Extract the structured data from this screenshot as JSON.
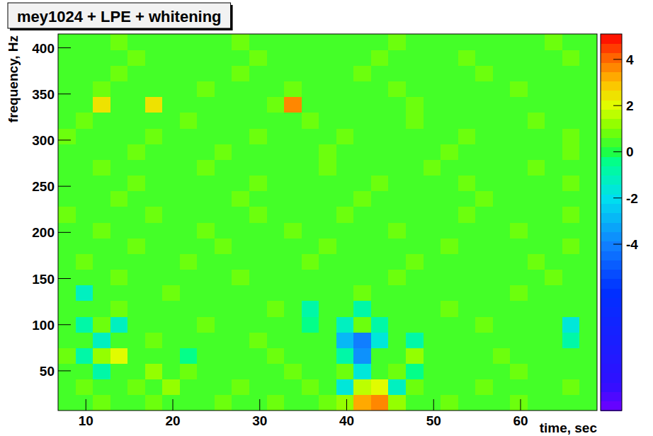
{
  "chart_data": {
    "type": "heatmap",
    "title": "mey1024 + LPE + whitening",
    "x_label": "time, sec",
    "y_label": "frequency, Hz",
    "xlim": [
      6.8,
      68.8
    ],
    "xticks": [
      10,
      20,
      30,
      40,
      50,
      60
    ],
    "ylim": [
      7,
      415
    ],
    "yticks": [
      50,
      100,
      150,
      200,
      250,
      300,
      350,
      400
    ],
    "zlim": [
      -11.2,
      5.1
    ],
    "zticks": [
      -4,
      -2,
      0,
      2,
      4
    ],
    "x_bins": [
      6.8,
      8.8,
      10.8,
      12.8,
      14.8,
      16.8,
      18.8,
      20.8,
      22.8,
      24.8,
      26.8,
      28.8,
      30.8,
      32.8,
      34.8,
      36.8,
      38.8,
      40.8,
      42.8,
      44.8,
      46.8,
      48.8,
      50.8,
      52.8,
      54.8,
      56.8,
      58.8,
      60.8,
      62.8,
      64.8,
      66.8,
      68.8
    ],
    "y_bins": [
      7,
      24,
      41,
      58,
      75,
      92,
      109,
      126,
      143,
      160,
      177,
      194,
      211,
      228,
      245,
      262,
      279,
      296,
      313,
      330,
      347,
      364,
      381,
      398,
      415
    ],
    "cells": [
      [
        0.6,
        0.4,
        0.8,
        0.5,
        0.3,
        0.7,
        0.5,
        0.4,
        0.6,
        0.9,
        0.5,
        0.4,
        0.7,
        0.6,
        0.5,
        0.8,
        1.2,
        3.2,
        3.8,
        1.3,
        0.6,
        0.5,
        0.7,
        0.4,
        0.6,
        0.5,
        0.8,
        0.6,
        0.4,
        0.5,
        0.6
      ],
      [
        0.5,
        0.8,
        0.4,
        0.6,
        0.7,
        0.5,
        1.2,
        0.6,
        0.5,
        0.4,
        0.7,
        0.6,
        0.5,
        0.4,
        0.8,
        0.5,
        -1.5,
        1.8,
        2.2,
        -1.2,
        0.9,
        0.4,
        0.6,
        0.5,
        0.7,
        0.5,
        0.4,
        0.6,
        0.5,
        0.7,
        0.5
      ],
      [
        0.4,
        0.6,
        -0.8,
        0.5,
        0.6,
        1.4,
        0.5,
        0.7,
        0.4,
        0.6,
        0.5,
        0.5,
        0.6,
        0.7,
        0.4,
        0.6,
        0.9,
        -1.6,
        0.5,
        0.8,
        -0.6,
        0.6,
        0.5,
        0.4,
        0.6,
        0.5,
        0.7,
        0.5,
        0.6,
        0.4,
        0.5
      ],
      [
        0.7,
        -0.9,
        1.3,
        2.1,
        0.4,
        0.6,
        0.5,
        -0.5,
        0.6,
        0.5,
        0.4,
        0.6,
        0.7,
        0.5,
        0.6,
        0.4,
        -0.8,
        -3.5,
        0.6,
        0.5,
        1.2,
        0.5,
        0.6,
        0.4,
        0.5,
        0.7,
        0.6,
        0.5,
        0.4,
        0.6,
        0.5
      ],
      [
        0.5,
        0.4,
        -1.4,
        0.6,
        0.5,
        0.7,
        0.4,
        0.6,
        0.5,
        0.6,
        0.5,
        0.7,
        0.4,
        0.6,
        0.5,
        0.6,
        -2.8,
        -4.2,
        -1.5,
        0.5,
        -1.0,
        0.6,
        0.4,
        0.5,
        0.6,
        0.5,
        0.4,
        0.6,
        0.5,
        -0.7,
        0.6
      ],
      [
        0.6,
        -0.7,
        0.9,
        -1.2,
        0.5,
        0.4,
        0.6,
        0.5,
        0.7,
        0.6,
        0.4,
        0.5,
        0.6,
        0.5,
        -0.6,
        0.4,
        -1.1,
        0.8,
        -0.9,
        0.6,
        0.5,
        0.4,
        0.6,
        0.5,
        0.7,
        0.4,
        0.6,
        0.5,
        0.4,
        -1.6,
        0.5
      ],
      [
        0.4,
        0.6,
        0.5,
        0.7,
        0.6,
        0.5,
        0.4,
        0.6,
        0.5,
        0.4,
        0.6,
        0.5,
        0.7,
        0.6,
        -0.9,
        0.5,
        0.6,
        -0.7,
        0.5,
        0.4,
        0.6,
        0.5,
        0.7,
        0.4,
        0.5,
        0.6,
        0.5,
        0.4,
        0.6,
        0.5,
        0.4
      ],
      [
        0.5,
        -1.3,
        0.6,
        0.4,
        0.5,
        0.6,
        0.7,
        0.5,
        0.4,
        0.6,
        0.5,
        0.4,
        0.6,
        0.5,
        0.6,
        0.4,
        0.5,
        0.7,
        0.6,
        0.5,
        0.4,
        0.6,
        0.5,
        0.6,
        0.4,
        0.5,
        0.7,
        0.5,
        0.6,
        0.4,
        0.6
      ],
      [
        0.6,
        0.5,
        0.4,
        0.7,
        0.5,
        0.6,
        0.4,
        0.5,
        0.6,
        0.5,
        0.7,
        0.4,
        0.6,
        0.5,
        0.4,
        0.6,
        0.5,
        0.6,
        0.4,
        0.7,
        0.5,
        0.6,
        0.5,
        0.4,
        0.6,
        0.5,
        0.4,
        0.6,
        0.7,
        0.5,
        0.5
      ],
      [
        0.5,
        0.7,
        0.6,
        0.4,
        0.5,
        0.6,
        0.5,
        0.7,
        0.4,
        0.6,
        0.5,
        0.6,
        0.4,
        0.5,
        0.7,
        0.5,
        0.6,
        0.4,
        0.6,
        0.5,
        0.7,
        0.4,
        0.6,
        0.5,
        0.5,
        0.6,
        0.4,
        0.7,
        0.5,
        0.6,
        0.4
      ],
      [
        0.6,
        0.4,
        0.5,
        0.6,
        0.7,
        0.4,
        0.6,
        0.5,
        0.5,
        0.7,
        0.4,
        0.6,
        0.5,
        0.6,
        0.4,
        0.7,
        0.5,
        0.5,
        0.6,
        0.4,
        0.6,
        0.5,
        0.7,
        0.5,
        0.4,
        0.6,
        0.5,
        0.6,
        0.4,
        0.7,
        0.5
      ],
      [
        0.4,
        0.6,
        0.7,
        0.5,
        0.6,
        0.5,
        0.4,
        0.6,
        0.7,
        0.5,
        0.6,
        0.4,
        0.5,
        0.7,
        0.6,
        0.5,
        0.4,
        0.6,
        0.5,
        0.7,
        0.4,
        0.5,
        0.6,
        0.6,
        0.5,
        0.4,
        0.7,
        0.5,
        0.6,
        0.5,
        0.6
      ],
      [
        0.7,
        0.5,
        0.4,
        0.6,
        0.5,
        0.7,
        0.6,
        0.4,
        0.5,
        0.6,
        0.5,
        0.7,
        0.6,
        0.4,
        0.5,
        0.6,
        0.7,
        0.5,
        0.4,
        0.6,
        0.5,
        0.6,
        0.4,
        0.7,
        0.6,
        0.5,
        0.5,
        0.4,
        0.6,
        0.7,
        0.5
      ],
      [
        0.5,
        0.6,
        0.4,
        0.7,
        0.5,
        0.6,
        0.5,
        0.4,
        0.6,
        0.5,
        0.7,
        0.5,
        0.6,
        0.4,
        0.5,
        0.6,
        0.5,
        0.7,
        0.4,
        0.6,
        0.5,
        0.6,
        0.4,
        0.5,
        0.7,
        0.5,
        0.6,
        0.4,
        0.6,
        0.5,
        0.5
      ],
      [
        0.5,
        0.6,
        0.5,
        0.4,
        0.7,
        0.6,
        0.5,
        0.6,
        0.4,
        0.5,
        0.6,
        0.7,
        0.4,
        0.5,
        0.6,
        0.5,
        0.4,
        0.6,
        0.7,
        0.5,
        0.6,
        0.4,
        0.5,
        0.7,
        0.6,
        0.4,
        0.5,
        0.6,
        0.5,
        0.7,
        0.4
      ],
      [
        0.6,
        0.5,
        0.7,
        0.4,
        0.6,
        0.5,
        0.6,
        0.4,
        0.7,
        0.5,
        0.5,
        0.6,
        0.4,
        0.6,
        0.5,
        0.7,
        0.4,
        0.5,
        0.6,
        0.6,
        0.4,
        0.7,
        0.5,
        0.6,
        0.5,
        0.4,
        0.6,
        0.7,
        0.5,
        0.4,
        0.6
      ],
      [
        0.6,
        0.4,
        0.5,
        0.6,
        0.7,
        0.4,
        0.6,
        0.5,
        0.5,
        0.7,
        0.4,
        0.6,
        0.5,
        0.6,
        0.4,
        0.7,
        0.5,
        0.5,
        0.6,
        0.4,
        0.6,
        0.5,
        0.7,
        0.5,
        0.4,
        0.6,
        0.5,
        0.6,
        0.4,
        0.7,
        0.5
      ],
      [
        0.7,
        0.5,
        0.4,
        0.6,
        0.5,
        0.7,
        0.6,
        0.4,
        0.5,
        0.6,
        0.5,
        0.7,
        0.6,
        0.4,
        0.5,
        0.6,
        0.7,
        0.5,
        0.4,
        0.6,
        0.5,
        0.6,
        0.4,
        0.7,
        0.6,
        0.5,
        0.5,
        0.4,
        0.6,
        0.7,
        0.5
      ],
      [
        0.5,
        0.7,
        0.6,
        0.4,
        0.5,
        0.6,
        0.5,
        0.7,
        0.4,
        0.6,
        0.5,
        0.6,
        0.4,
        0.5,
        0.7,
        0.5,
        0.6,
        0.4,
        0.6,
        0.5,
        0.7,
        0.4,
        0.6,
        0.5,
        0.5,
        0.6,
        0.4,
        0.7,
        0.5,
        0.6,
        0.4
      ],
      [
        0.5,
        0.6,
        2.4,
        0.6,
        0.5,
        2.6,
        0.4,
        0.6,
        0.5,
        0.4,
        0.6,
        0.5,
        0.7,
        3.6,
        0.5,
        0.6,
        0.4,
        0.5,
        0.6,
        0.5,
        0.7,
        0.4,
        0.6,
        0.5,
        0.6,
        0.4,
        0.5,
        0.6,
        0.5,
        0.4,
        0.6
      ],
      [
        0.4,
        0.6,
        0.7,
        0.5,
        0.6,
        0.5,
        0.4,
        0.6,
        0.7,
        0.5,
        0.6,
        0.4,
        0.5,
        0.7,
        0.6,
        0.5,
        0.4,
        0.6,
        0.5,
        0.7,
        0.4,
        0.5,
        0.6,
        0.6,
        0.5,
        0.4,
        0.7,
        0.5,
        0.6,
        0.5,
        0.6
      ],
      [
        0.5,
        0.6,
        0.4,
        0.7,
        0.5,
        0.6,
        0.5,
        0.4,
        0.6,
        0.5,
        0.7,
        0.5,
        0.6,
        0.4,
        0.5,
        0.6,
        0.5,
        0.7,
        0.4,
        0.6,
        0.5,
        0.6,
        0.4,
        0.5,
        0.7,
        0.5,
        0.6,
        0.4,
        0.6,
        0.5,
        0.5
      ],
      [
        0.5,
        0.6,
        0.5,
        0.4,
        0.7,
        0.6,
        0.5,
        0.6,
        0.4,
        0.5,
        0.6,
        0.7,
        0.4,
        0.5,
        0.6,
        0.5,
        0.4,
        0.6,
        0.7,
        0.5,
        0.6,
        0.4,
        0.5,
        0.7,
        0.6,
        0.4,
        0.5,
        0.6,
        0.5,
        0.7,
        0.4
      ],
      [
        0.6,
        0.5,
        0.4,
        0.7,
        0.5,
        0.6,
        0.4,
        0.5,
        0.6,
        0.5,
        0.7,
        0.4,
        0.6,
        0.5,
        0.4,
        0.6,
        0.5,
        0.6,
        0.4,
        0.7,
        0.5,
        0.6,
        0.5,
        0.4,
        0.6,
        0.5,
        0.4,
        0.6,
        0.7,
        0.5,
        0.5
      ]
    ]
  }
}
